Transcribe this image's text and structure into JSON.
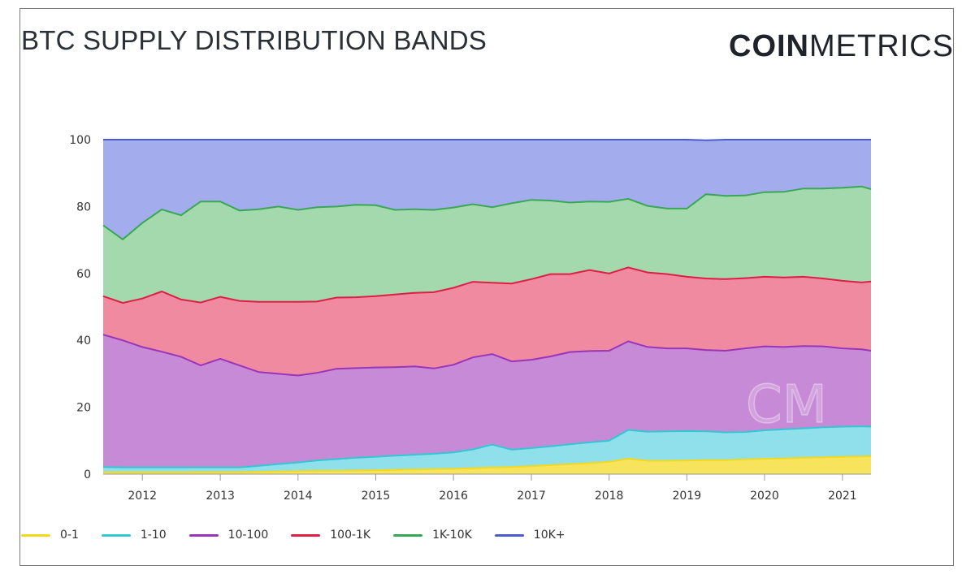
{
  "header": {
    "title": "BTC SUPPLY DISTRIBUTION BANDS",
    "logo_bold": "COIN",
    "logo_light": "METRICS"
  },
  "watermark": "CM",
  "chart_data": {
    "type": "area",
    "stacked": true,
    "title": "BTC SUPPLY DISTRIBUTION BANDS",
    "xlabel": "",
    "ylabel": "",
    "ylim": [
      0,
      100
    ],
    "xlim": [
      "2011-07-01",
      "2021-05-15"
    ],
    "yticks": [
      0,
      20,
      40,
      60,
      80,
      100
    ],
    "xticks": [
      "2012",
      "2013",
      "2014",
      "2015",
      "2016",
      "2017",
      "2018",
      "2019",
      "2020",
      "2021"
    ],
    "grid": false,
    "legend_position": "bottom-left",
    "x": [
      "2011-07-01",
      "2011-10-01",
      "2012-01-01",
      "2012-04-01",
      "2012-07-01",
      "2012-10-01",
      "2013-01-01",
      "2013-04-01",
      "2013-07-01",
      "2013-10-01",
      "2014-01-01",
      "2014-04-01",
      "2014-07-01",
      "2014-10-01",
      "2015-01-01",
      "2015-04-01",
      "2015-07-01",
      "2015-10-01",
      "2016-01-01",
      "2016-04-01",
      "2016-07-01",
      "2016-10-01",
      "2017-01-01",
      "2017-04-01",
      "2017-07-01",
      "2017-10-01",
      "2018-01-01",
      "2018-04-01",
      "2018-07-01",
      "2018-10-01",
      "2019-01-01",
      "2019-04-01",
      "2019-07-01",
      "2019-10-01",
      "2020-01-01",
      "2020-04-01",
      "2020-07-01",
      "2020-10-01",
      "2021-01-01",
      "2021-04-01",
      "2021-05-15"
    ],
    "series": [
      {
        "name": "0-1",
        "color": "#f7e45c",
        "line": "#f2d91f",
        "values": [
          0.5,
          0.5,
          0.5,
          0.5,
          0.5,
          0.6,
          0.6,
          0.6,
          0.7,
          0.8,
          0.9,
          1.0,
          1.0,
          1.1,
          1.2,
          1.3,
          1.4,
          1.5,
          1.6,
          1.8,
          2.0,
          2.1,
          2.4,
          2.7,
          3.0,
          3.3,
          3.7,
          4.6,
          4.0,
          4.0,
          4.1,
          4.2,
          4.2,
          4.4,
          4.6,
          4.7,
          4.9,
          5.0,
          5.2,
          5.3,
          5.4
        ]
      },
      {
        "name": "1-10",
        "color": "#8fe0ea",
        "line": "#33c7d6",
        "values": [
          1.6,
          1.5,
          1.5,
          1.5,
          1.5,
          1.4,
          1.4,
          1.4,
          1.8,
          2.2,
          2.6,
          3.1,
          3.5,
          3.8,
          4.0,
          4.2,
          4.4,
          4.6,
          4.9,
          5.6,
          6.8,
          5.2,
          5.4,
          5.6,
          5.9,
          6.2,
          6.3,
          8.6,
          8.7,
          8.8,
          8.8,
          8.6,
          8.3,
          8.2,
          8.5,
          8.7,
          8.8,
          9.0,
          9.0,
          9.0,
          8.8
        ]
      },
      {
        "name": "10-100",
        "color": "#c78ad6",
        "line": "#9a34b8",
        "values": [
          39.6,
          38.0,
          36.0,
          34.6,
          33.1,
          30.5,
          32.5,
          30.5,
          28.0,
          27.0,
          26.0,
          26.2,
          27.0,
          26.8,
          26.7,
          26.5,
          26.4,
          25.5,
          26.2,
          27.5,
          27.1,
          26.4,
          26.4,
          26.9,
          27.6,
          27.3,
          26.9,
          26.5,
          25.3,
          24.8,
          24.7,
          24.3,
          24.4,
          25.0,
          25.1,
          24.6,
          24.6,
          24.2,
          23.4,
          23.0,
          22.7
        ]
      },
      {
        "name": "100-1K",
        "color": "#f08aa0",
        "line": "#dd1f46",
        "values": [
          11.5,
          11.2,
          14.5,
          18.0,
          17.1,
          18.8,
          18.5,
          19.3,
          21.0,
          21.5,
          22.0,
          21.3,
          21.3,
          21.2,
          21.3,
          21.7,
          22.0,
          22.8,
          23.0,
          22.6,
          21.3,
          23.3,
          24.1,
          24.6,
          23.3,
          24.2,
          23.1,
          22.1,
          22.3,
          22.2,
          21.4,
          21.4,
          21.4,
          21.0,
          20.8,
          20.8,
          20.7,
          20.3,
          20.2,
          20.0,
          20.7
        ]
      },
      {
        "name": "1K-10K",
        "color": "#a3d9ad",
        "line": "#3aa757",
        "values": [
          21.2,
          19.0,
          22.6,
          24.5,
          25.2,
          30.2,
          28.5,
          27.0,
          27.7,
          28.5,
          27.5,
          28.2,
          27.2,
          27.6,
          27.2,
          25.3,
          25.0,
          24.6,
          24.0,
          23.2,
          22.6,
          24.0,
          23.7,
          22.0,
          21.4,
          20.5,
          21.4,
          20.5,
          19.9,
          19.6,
          20.4,
          25.2,
          24.9,
          24.7,
          25.3,
          25.6,
          26.4,
          26.9,
          27.8,
          28.7,
          27.6
        ]
      },
      {
        "name": "10K+",
        "color": "#a3acec",
        "line": "#4a5bd0",
        "values": [
          25.6,
          29.8,
          24.9,
          20.9,
          22.6,
          18.5,
          18.5,
          21.2,
          20.8,
          20.0,
          21.0,
          20.2,
          20.0,
          19.5,
          19.6,
          21.0,
          20.8,
          21.0,
          20.3,
          19.3,
          20.2,
          19.0,
          18.0,
          18.2,
          18.8,
          18.5,
          18.6,
          17.7,
          19.8,
          20.6,
          20.6,
          16.1,
          16.8,
          16.7,
          15.7,
          15.6,
          14.6,
          14.6,
          14.4,
          14.0,
          14.8
        ]
      }
    ]
  }
}
